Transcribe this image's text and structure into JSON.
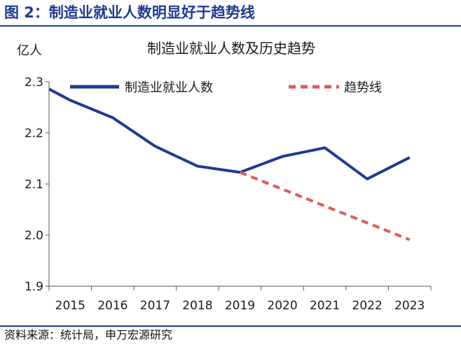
{
  "figure": {
    "title": "图 2：制造业就业人数明显好于趋势线",
    "source": "资料来源：统计局，申万宏源研究"
  },
  "chart_data": {
    "type": "line",
    "title": "制造业就业人数及历史趋势",
    "ylabel": "亿人",
    "xlabel": "",
    "x": [
      "2015",
      "2016",
      "2017",
      "2018",
      "2019",
      "2020",
      "2021",
      "2022",
      "2023"
    ],
    "ylim": [
      1.9,
      2.3
    ],
    "yticks": [
      "1.9",
      "2.0",
      "2.1",
      "2.2",
      "2.3"
    ],
    "grid": false,
    "legend": "top",
    "series": [
      {
        "name": "制造业就业人数",
        "style": "solid",
        "color": "#1f3a93",
        "points": [
          [
            2014.5,
            2.286
          ],
          [
            2015.0,
            2.264
          ],
          [
            2016.0,
            2.23
          ],
          [
            2017.0,
            2.174
          ],
          [
            2018.0,
            2.135
          ],
          [
            2019.0,
            2.123
          ],
          [
            2020.0,
            2.154
          ],
          [
            2021.0,
            2.171
          ],
          [
            2022.0,
            2.11
          ],
          [
            2023.0,
            2.152
          ]
        ]
      },
      {
        "name": "趋势线",
        "style": "dashed",
        "color": "#e05a5a",
        "points": [
          [
            2019.0,
            2.123
          ],
          [
            2023.0,
            1.991
          ]
        ]
      }
    ]
  }
}
